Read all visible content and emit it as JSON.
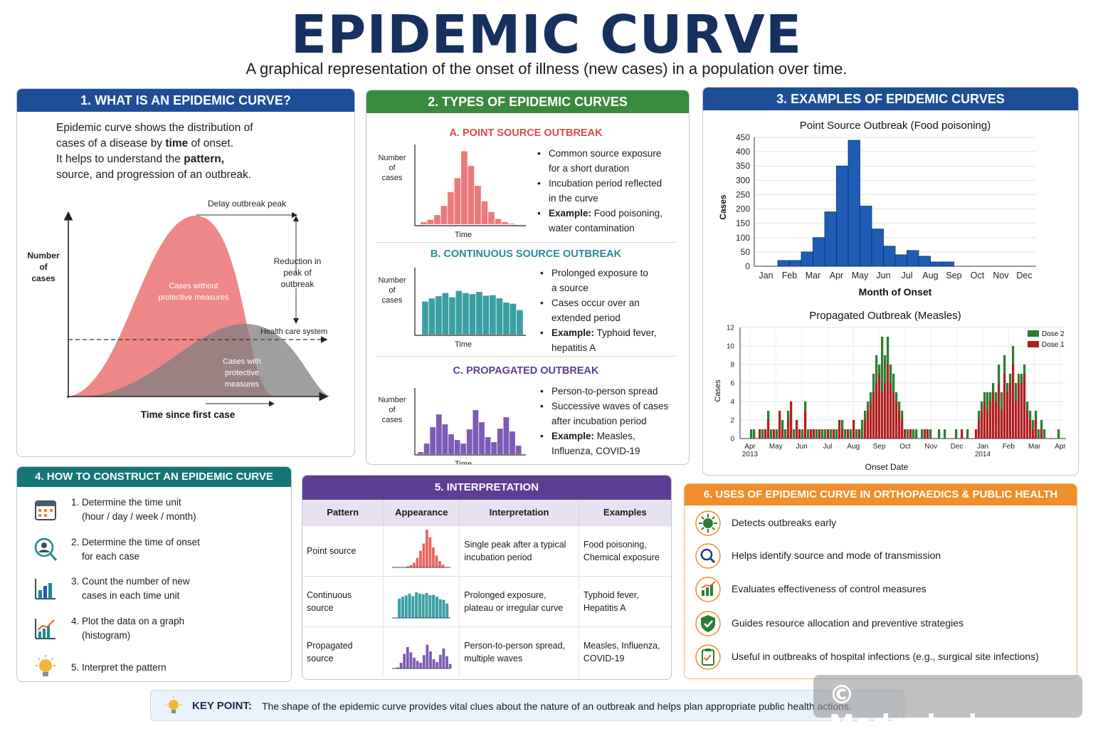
{
  "title": "EPIDEMIC CURVE",
  "subtitle": "A graphical representation of the onset of illness (new cases) in a population over time.",
  "colors": {
    "navy": "#1d4e96",
    "green": "#3a8a3e",
    "teal": "#157577",
    "purple": "#5d3e94",
    "orange": "#ef8e2a",
    "red": "#e8696b",
    "gray": "#8a8a8a"
  },
  "panel1": {
    "header": "1. WHAT IS AN EPIDEMIC CURVE?",
    "text1": "Epidemic curve shows the distribution of",
    "text2a": "cases of a disease by ",
    "text2b": "time",
    "text2c": " of onset.",
    "text3a": "It helps to understand the ",
    "text3b": "pattern,",
    "text4": "source, and progression of an outbreak.",
    "ylabel_1": "Number",
    "ylabel_2": "of",
    "ylabel_3": "cases",
    "xlabel": "Time since first case",
    "delay": "Delay outbreak peak",
    "reduction_1": "Reduction in",
    "reduction_2": "peak of",
    "reduction_3": "outbreak",
    "healthcare": "Health care system",
    "without_1": "Cases without",
    "without_2": "protective measures",
    "with_1": "Cases with",
    "with_2": "protective",
    "with_3": "measures"
  },
  "panel2": {
    "header": "2. TYPES OF EPIDEMIC CURVES",
    "ylabel_1": "Number",
    "ylabel_2": "of",
    "ylabel_3": "cases",
    "time": "Time",
    "a": {
      "title": "A. POINT SOURCE OUTBREAK",
      "b1": "Common source exposure",
      "b1b": "for a short duration",
      "b2": "Incubation period reflected",
      "b2b": "in the curve",
      "ex_label": "Example:",
      "ex": " Food poisoning,",
      "exb": "water contamination"
    },
    "b": {
      "title": "B. CONTINUOUS SOURCE OUTBREAK",
      "b1": "Prolonged exposure to",
      "b1b": "a source",
      "b2": "Cases occur over an",
      "b2b": "extended period",
      "ex_label": "Example:",
      "ex": " Typhoid fever,",
      "exb": "hepatitis A"
    },
    "c": {
      "title": "C. PROPAGATED OUTBREAK",
      "b1": "Person-to-person spread",
      "b2": "Successive waves of cases",
      "b2b": "after incubation period",
      "ex_label": "Example:",
      "ex": " Measles,",
      "exb": "Influenza, COVID-19"
    }
  },
  "panel3": {
    "header": "3. EXAMPLES OF EPIDEMIC CURVES",
    "chart1_title": "Point Source Outbreak (Food poisoning)",
    "chart1_ylabel": "Cases",
    "chart1_xlabel": "Month of Onset",
    "chart2_title": "Propagated Outbreak (Measles)",
    "chart2_ylabel": "Cases",
    "chart2_xlabel": "Onset Date",
    "legend_dose2": "Dose 2",
    "legend_dose1": "Dose 1"
  },
  "chart_data": [
    {
      "type": "bar",
      "title": "Point Source Outbreak (Food poisoning)",
      "xlabel": "Month of Onset",
      "ylabel": "Cases",
      "ylim": [
        0,
        450
      ],
      "yticks": [
        0,
        50,
        100,
        150,
        200,
        250,
        300,
        350,
        400,
        450
      ],
      "month_labels": [
        "Jan",
        "Feb",
        "Mar",
        "Apr",
        "May",
        "Jun",
        "Jul",
        "Aug",
        "Sep",
        "Oct",
        "Nov",
        "Dec"
      ],
      "bins_start_month": 1.5,
      "bin_width_month": 0.5,
      "values": [
        20,
        20,
        50,
        100,
        190,
        350,
        440,
        210,
        130,
        70,
        40,
        55,
        35,
        15,
        15
      ],
      "color": "#1f5cb5",
      "grid": true
    },
    {
      "type": "bar",
      "stacked": true,
      "title": "Propagated Outbreak (Measles)",
      "xlabel": "Onset Date",
      "ylabel": "Cases",
      "ylim": [
        0,
        12
      ],
      "yticks": [
        0,
        2,
        4,
        6,
        8,
        10,
        12
      ],
      "x_labels": [
        "Apr",
        "May",
        "Jun",
        "Jul",
        "Aug",
        "Sep",
        "Oct",
        "Nov",
        "Dec",
        "Jan",
        "Feb",
        "Mar",
        "Apr"
      ],
      "year_labels": [
        {
          "label": "2013",
          "at": "Apr"
        },
        {
          "label": "2014",
          "at": "Jan"
        }
      ],
      "legend": "top-right",
      "series": [
        {
          "name": "Dose 1",
          "color": "#b01f1f",
          "values": [
            0,
            0,
            0,
            1,
            0,
            1,
            2,
            0,
            1,
            0,
            3,
            1,
            0,
            2,
            4,
            0,
            2,
            1,
            0,
            3,
            0,
            1,
            1,
            0,
            1,
            0,
            0,
            1,
            0,
            1,
            0,
            2,
            1,
            0,
            1,
            0,
            2,
            0,
            1,
            0,
            2,
            3,
            4,
            5,
            6,
            7,
            5,
            6,
            8,
            6,
            5,
            4,
            3,
            2,
            1,
            0,
            1,
            0,
            0,
            0,
            0,
            1,
            1,
            0,
            0,
            0,
            0,
            0,
            0,
            0,
            0,
            0,
            0,
            0,
            1,
            0,
            0,
            0,
            0,
            1,
            2,
            3,
            4,
            3,
            4,
            5,
            4,
            6,
            3,
            7,
            5,
            6,
            8,
            4,
            6,
            6,
            7,
            3,
            2,
            1,
            2,
            0,
            1,
            0,
            0,
            0,
            0,
            0,
            0
          ]
        },
        {
          "name": "Dose 2",
          "color": "#2e7d32",
          "values": [
            1,
            1,
            0,
            0,
            1,
            0,
            1,
            1,
            0,
            1,
            0,
            1,
            1,
            1,
            0,
            1,
            0,
            0,
            1,
            1,
            1,
            0,
            0,
            1,
            0,
            1,
            1,
            0,
            1,
            0,
            1,
            0,
            1,
            1,
            0,
            1,
            0,
            1,
            0,
            2,
            1,
            1,
            1,
            2,
            3,
            1,
            6,
            3,
            3,
            2,
            2,
            1,
            1,
            1,
            0,
            1,
            0,
            1,
            1,
            0,
            1,
            0,
            0,
            1,
            0,
            0,
            1,
            0,
            1,
            0,
            0,
            0,
            1,
            0,
            0,
            0,
            1,
            0,
            0,
            0,
            1,
            1,
            1,
            2,
            1,
            1,
            1,
            2,
            2,
            2,
            1,
            1,
            2,
            2,
            1,
            1,
            1,
            1,
            1,
            1,
            1,
            1,
            1,
            1,
            0,
            0,
            0,
            0,
            1
          ]
        }
      ],
      "grid": true
    }
  ],
  "panel4": {
    "header": "4. HOW TO CONSTRUCT AN EPIDEMIC CURVE",
    "steps": [
      {
        "l1": "1. Determine the time unit",
        "l2": "(hour / day / week / month)"
      },
      {
        "l1": "2. Determine the time of onset",
        "l2": "for each case"
      },
      {
        "l1": "3. Count the number of new",
        "l2": "cases in each time unit"
      },
      {
        "l1": "4. Plot the data on a graph",
        "l2": "(histogram)"
      },
      {
        "l1": "5. Interpret the pattern",
        "l2": ""
      }
    ]
  },
  "panel5": {
    "header": "5. INTERPRETATION",
    "cols": [
      "Pattern",
      "Appearance",
      "Interpretation",
      "Examples"
    ],
    "rows": [
      {
        "pattern": "Point source",
        "interp_1": "Single peak after a typical",
        "interp_2": "incubation period",
        "ex_1": "Food poisoning,",
        "ex_2": "Chemical exposure"
      },
      {
        "pattern": "Continuous source",
        "interp_1": "Prolonged exposure,",
        "interp_2": "plateau or irregular curve",
        "ex_1": "Typhoid fever,",
        "ex_2": "Hepatitis A"
      },
      {
        "pattern": "Propagated source",
        "interp_1": "Person-to-person spread,",
        "interp_2": "multiple waves",
        "ex_1": "Measles, Influenza,",
        "ex_2": "COVID-19"
      }
    ]
  },
  "panel6": {
    "header": "6. USES OF EPIDEMIC CURVE IN ORTHOPAEDICS & PUBLIC HEALTH",
    "uses": [
      "Detects outbreaks early",
      "Helps identify source and mode of transmission",
      "Evaluates effectiveness of control measures",
      "Guides resource allocation and preventive strategies",
      "Useful in outbreaks of hospital infections (e.g., surgical site infections)"
    ]
  },
  "keypoint": {
    "label": "KEY POINT:",
    "text": "The shape of the epidemic curve provides vital clues about the nature of an outbreak and helps plan appropriate public health actions."
  },
  "watermark": "© Medpulselq.com"
}
